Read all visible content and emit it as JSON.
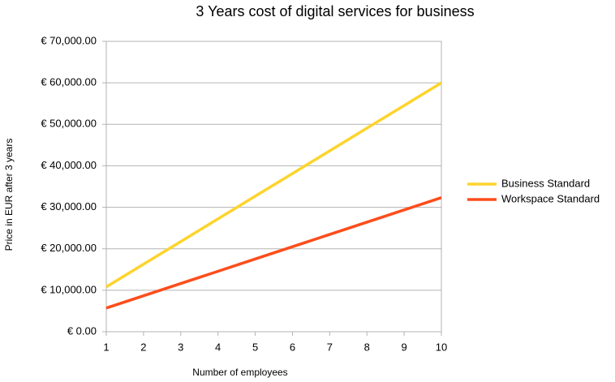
{
  "chart_data": {
    "type": "line",
    "title": "3 Years cost of digital services for business",
    "x_label": "Number of employees",
    "y_label": "Price in EUR after 3 years",
    "x": [
      1,
      2,
      3,
      4,
      5,
      6,
      7,
      8,
      9,
      10
    ],
    "series": [
      {
        "name": "Business Standard",
        "color": "#fdd42c",
        "values": [
          10800,
          16270,
          21730,
          27200,
          32670,
          38130,
          43600,
          49070,
          54530,
          60000
        ]
      },
      {
        "name": "Workspace Standard",
        "color": "#fd4d1b",
        "values": [
          5700,
          8660,
          11620,
          14570,
          17530,
          20490,
          23450,
          26410,
          29360,
          32320
        ]
      }
    ],
    "xlim": [
      1,
      10
    ],
    "xticks": [
      1,
      2,
      3,
      4,
      5,
      6,
      7,
      8,
      9,
      10
    ],
    "ylim": [
      0,
      70000
    ],
    "yticks": [
      {
        "value": 0,
        "label": "€ 0.00"
      },
      {
        "value": 10000,
        "label": "€ 10,000.00"
      },
      {
        "value": 20000,
        "label": "€ 20,000.00"
      },
      {
        "value": 30000,
        "label": "€ 30,000.00"
      },
      {
        "value": 40000,
        "label": "€ 40,000.00"
      },
      {
        "value": 50000,
        "label": "€ 50,000.00"
      },
      {
        "value": 60000,
        "label": "€ 60,000.00"
      },
      {
        "value": 70000,
        "label": "€ 70,000.00"
      }
    ],
    "grid": true,
    "legend": "right"
  }
}
